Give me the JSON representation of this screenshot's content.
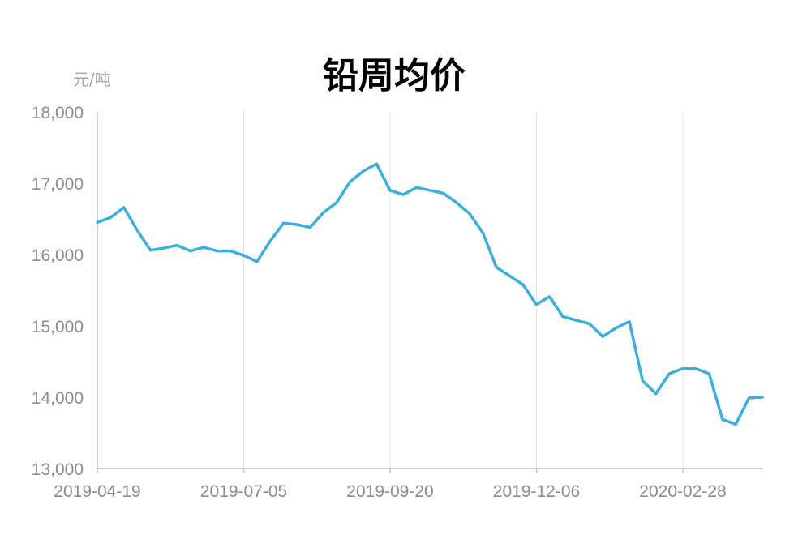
{
  "chart_data": {
    "type": "line",
    "title": "铅周均价",
    "ylabel": "元/吨",
    "xlabel": "",
    "ylim": [
      13000,
      18000
    ],
    "yticks": [
      "13,000",
      "14,000",
      "15,000",
      "16,000",
      "17,000",
      "18,000"
    ],
    "xticks": [
      "2019-04-19",
      "2019-07-05",
      "2019-09-20",
      "2019-12-06",
      "2020-02-28"
    ],
    "grid": "vertical",
    "legend": "none",
    "series": [
      {
        "color": "#3baee0",
        "values": [
          16450,
          16520,
          16660,
          16340,
          16060,
          16090,
          16130,
          16050,
          16100,
          16050,
          16050,
          15990,
          15900,
          16190,
          16440,
          16420,
          16380,
          16590,
          16730,
          17020,
          17170,
          17270,
          16900,
          16840,
          16940,
          16900,
          16860,
          16730,
          16570,
          16300,
          15820,
          15700,
          15580,
          15300,
          15410,
          15130,
          15080,
          15030,
          14850,
          14970,
          15060,
          14230,
          14050,
          14330,
          14400,
          14400,
          14330,
          13690,
          13620,
          13990,
          14000
        ]
      }
    ]
  }
}
